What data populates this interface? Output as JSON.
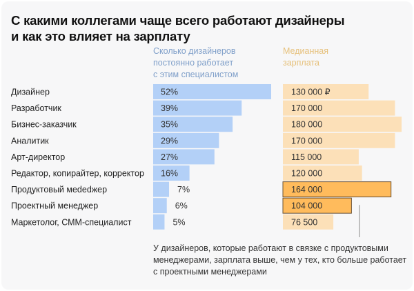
{
  "title_lines": [
    "С какими коллегами чаще всего работают дизайнеры",
    "и как это влияет на зарплату"
  ],
  "chart_data": {
    "type": "bar",
    "orientation": "horizontal",
    "title": "С какими коллегами чаще всего работают дизайнеры и как это влияет на зарплату",
    "categories": [
      "Дизайнер",
      "Разработчик",
      "Бизнес-заказчик",
      "Аналитик",
      "Арт-директор",
      "Редактор, копирайтер, корректор",
      "Продуктовый мededжер",
      "Проектный менеджер",
      "Маркетолог, СММ-специалист"
    ],
    "series": [
      {
        "name": "Сколько дизайнеров постоянно работает с этим специалистом",
        "header_lines": [
          "Сколько дизайнеров",
          "постоянно работает",
          "с этим специалистом"
        ],
        "values": [
          52,
          39,
          35,
          29,
          27,
          16,
          7,
          6,
          5
        ],
        "labels": [
          "52%",
          "39%",
          "35%",
          "29%",
          "27%",
          "16%",
          "7%",
          "6%",
          "5%"
        ],
        "unit": "%",
        "color": "#b3d0f7"
      },
      {
        "name": "Медианная зарплата",
        "header_lines": [
          "Медианная",
          "зарплата"
        ],
        "values": [
          130000,
          170000,
          180000,
          170000,
          115000,
          120000,
          164000,
          104000,
          76500
        ],
        "labels": [
          "130 000 ₽",
          "170 000",
          "180 000",
          "170 000",
          "115 000",
          "120 000",
          "164 000",
          "104 000",
          "76 500"
        ],
        "unit": "₽",
        "color": "#fce0b8",
        "highlight_color": "#ffbb5c",
        "highlighted": [
          "Продуктовый мededжер",
          "Проектный менеджер"
        ]
      }
    ],
    "annotation": "У дизайнеров, которые работают в связке с продуктовыми менеджерами, зарплата выше, чем у тех, кто больше работает с проектными менеджерами"
  },
  "note_lines": [
    "У дизайнеров, которые работают в связке с продуктовыми",
    "менеджерами, зарплата выше, чем у тех, кто больше работает",
    "с проектными менеджерами"
  ]
}
